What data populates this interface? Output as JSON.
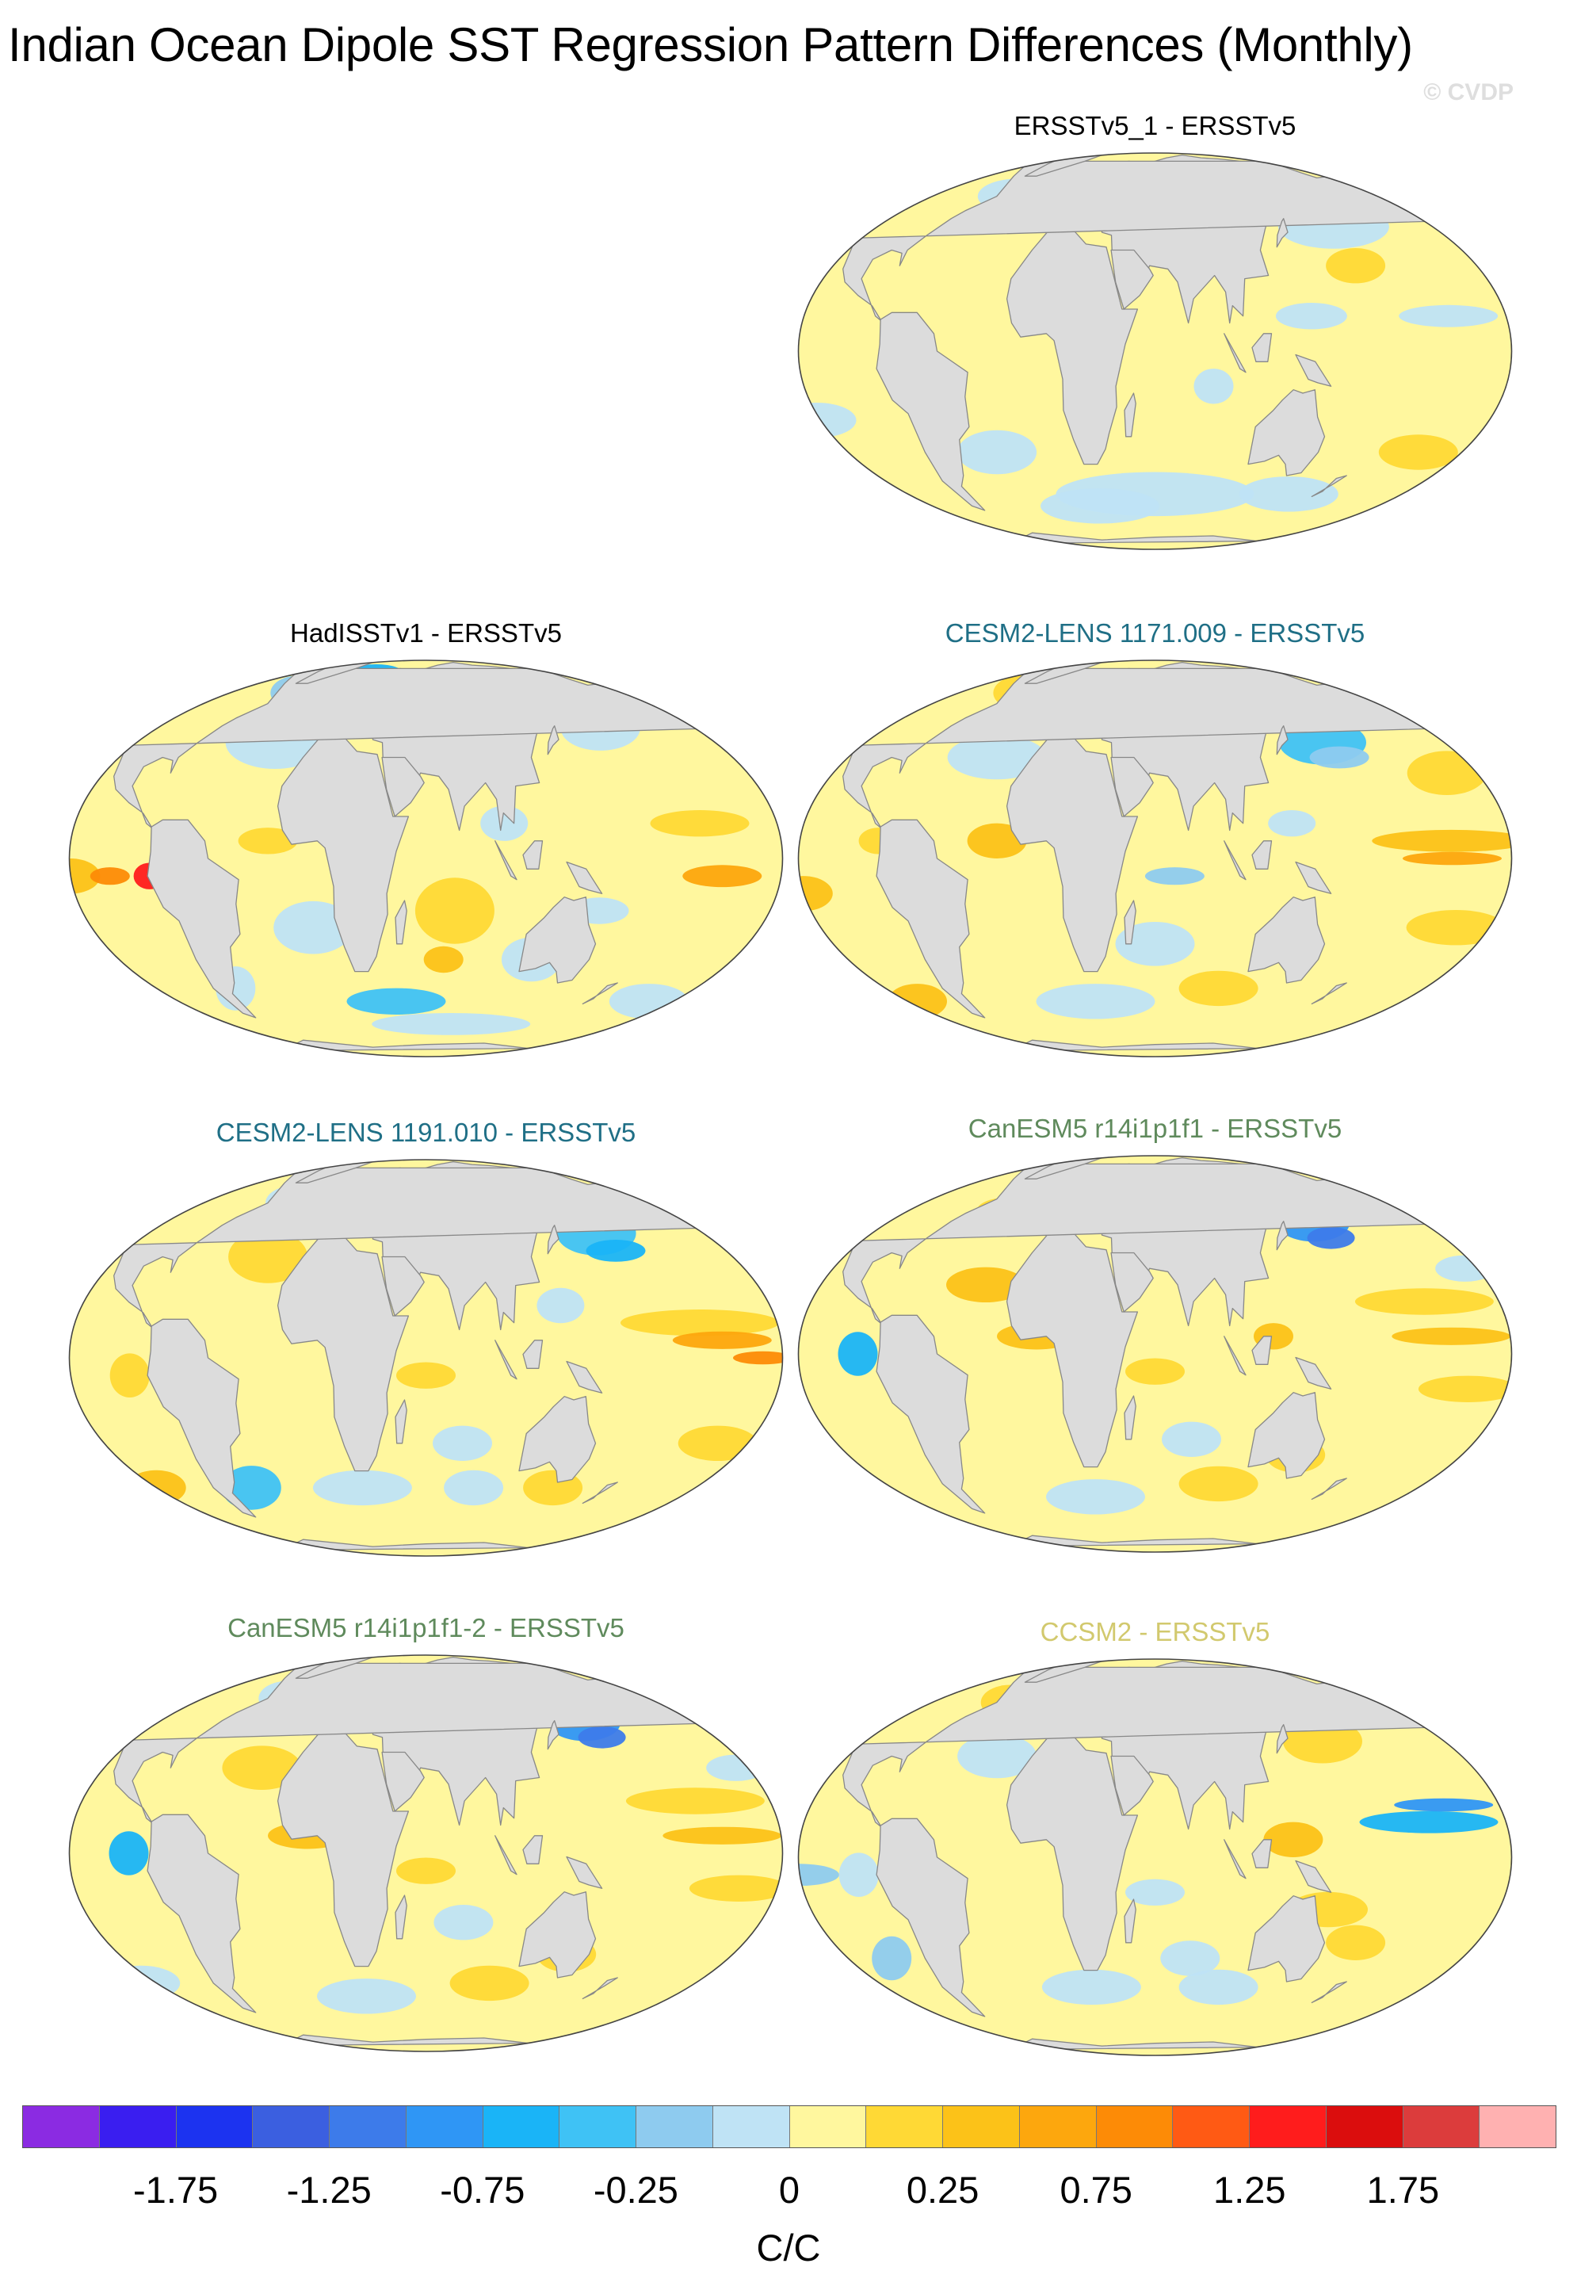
{
  "title": "Indian Ocean Dipole SST Regression Pattern Differences (Monthly)",
  "watermark": "© CVDP",
  "panels": [
    {
      "title": "ERSSTv5_1 - ERSSTv5",
      "color": "#000000"
    },
    {
      "title": "HadISSTv1 - ERSSTv5",
      "color": "#000000"
    },
    {
      "title": "CESM2-LENS 1171.009 - ERSSTv5",
      "color": "#1f6f86"
    },
    {
      "title": "CESM2-LENS 1191.010 - ERSSTv5",
      "color": "#1f6f86"
    },
    {
      "title": "CanESM5 r14i1p1f1 - ERSSTv5",
      "color": "#5f8a5c"
    },
    {
      "title": "CanESM5 r14i1p1f1-2 - ERSSTv5",
      "color": "#5f8a5c"
    },
    {
      "title": "CCSM2 - ERSSTv5",
      "color": "#d2c96e"
    }
  ],
  "colorbar": {
    "colors": [
      "#8b2be2",
      "#3a1ef0",
      "#1c33f0",
      "#3b5fe0",
      "#3d7bea",
      "#2f96f5",
      "#1ab4f7",
      "#3fc2f5",
      "#8ecbef",
      "#bfe3f5",
      "#fff79e",
      "#ffd935",
      "#fcc218",
      "#fda70d",
      "#fd8b06",
      "#ff5a14",
      "#ff1c1c",
      "#db0d0d",
      "#dc3c3c",
      "#ffb1b1"
    ],
    "labels": [
      "-1.75",
      "-1.25",
      "-0.75",
      "-0.25",
      "0",
      "0.25",
      "0.75",
      "1.25",
      "1.75"
    ],
    "units": "C/C"
  },
  "map_colors": {
    "land": "#dcdcdc",
    "coast": "#888888",
    "ocean_base": "#fff79e"
  }
}
